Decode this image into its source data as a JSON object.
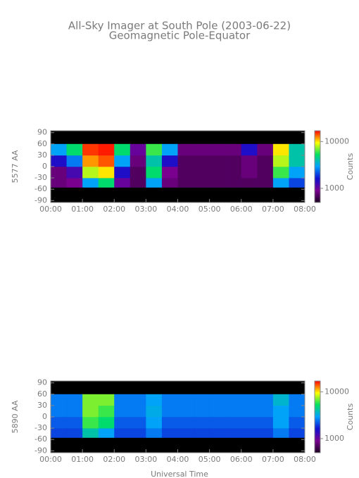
{
  "chart_data": [
    {
      "type": "heatmap",
      "title": "All-Sky Imager at South Pole (2003-06-22)",
      "subtitle": "Geomagnetic Pole-Equator",
      "y_label": "5577 AA",
      "colorbar_label": "Counts",
      "time_edges": [
        0,
        0.5,
        1,
        1.5,
        2,
        2.5,
        3,
        3.5,
        4,
        4.5,
        5,
        5.5,
        6,
        6.5,
        7,
        7.5,
        8
      ],
      "lat_edges": [
        -55,
        -30,
        0,
        30,
        60
      ],
      "values": [
        [
          800,
          900,
          3000,
          5000,
          1000,
          700,
          3000,
          800,
          700,
          700,
          700,
          700,
          700,
          700,
          3000,
          2000
        ],
        [
          800,
          1200,
          8000,
          10000,
          1500,
          700,
          5000,
          900,
          700,
          700,
          700,
          700,
          800,
          700,
          6000,
          3000
        ],
        [
          1500,
          2500,
          12000,
          14000,
          3000,
          800,
          4000,
          1500,
          700,
          700,
          700,
          700,
          800,
          700,
          8000,
          4000
        ],
        [
          3000,
          5000,
          15000,
          16000,
          5000,
          1000,
          6000,
          3000,
          800,
          800,
          800,
          800,
          1500,
          800,
          10000,
          4000
        ]
      ],
      "xlim": [
        0,
        8
      ],
      "xticks": [
        {
          "value": 0,
          "label": "00:00"
        },
        {
          "value": 1,
          "label": "01:00"
        },
        {
          "value": 2,
          "label": "02:00"
        },
        {
          "value": 3,
          "label": "03:00"
        },
        {
          "value": 4,
          "label": "04:00"
        },
        {
          "value": 5,
          "label": "05:00"
        },
        {
          "value": 6,
          "label": "06:00"
        },
        {
          "value": 7,
          "label": "07:00"
        },
        {
          "value": 8,
          "label": "08:00"
        }
      ],
      "ylim": [
        -95,
        95
      ],
      "yticks": [
        -90,
        -60,
        -30,
        0,
        30,
        60,
        90
      ],
      "clim": [
        500,
        17000
      ],
      "cticks": [
        1000,
        10000
      ],
      "log_color": true,
      "colormap": [
        "#1a0020",
        "#7a0090",
        "#1010d0",
        "#00a0ff",
        "#00e060",
        "#ffff00",
        "#ff0000"
      ]
    },
    {
      "type": "heatmap",
      "y_label": "5890 AA",
      "colorbar_label": "Counts",
      "x_label": "Universal Time",
      "time_edges": [
        0,
        0.5,
        1,
        1.5,
        2,
        2.5,
        3,
        3.5,
        4,
        4.5,
        5,
        5.5,
        6,
        6.5,
        7,
        7.5,
        8
      ],
      "lat_edges": [
        -55,
        -30,
        0,
        30,
        60
      ],
      "values": [
        [
          2000,
          2000,
          4000,
          3000,
          2000,
          2000,
          2500,
          2000,
          2000,
          2000,
          2000,
          2000,
          2000,
          2000,
          2500,
          2000
        ],
        [
          2200,
          2200,
          6000,
          5000,
          2200,
          2200,
          3000,
          2200,
          2200,
          2200,
          2200,
          2200,
          2200,
          2200,
          3000,
          2200
        ],
        [
          2500,
          2500,
          7000,
          6000,
          2500,
          2500,
          3200,
          2500,
          2500,
          2500,
          2500,
          2500,
          2500,
          2500,
          3000,
          2500
        ],
        [
          2500,
          2500,
          7000,
          7000,
          2500,
          2500,
          3000,
          2500,
          2500,
          2500,
          2500,
          2500,
          2500,
          2500,
          3500,
          2500
        ]
      ],
      "xlim": [
        0,
        8
      ],
      "xticks": [
        {
          "value": 0,
          "label": "00:00"
        },
        {
          "value": 1,
          "label": "01:00"
        },
        {
          "value": 2,
          "label": "02:00"
        },
        {
          "value": 3,
          "label": "03:00"
        },
        {
          "value": 4,
          "label": "04:00"
        },
        {
          "value": 5,
          "label": "05:00"
        },
        {
          "value": 6,
          "label": "06:00"
        },
        {
          "value": 7,
          "label": "07:00"
        },
        {
          "value": 8,
          "label": "08:00"
        }
      ],
      "ylim": [
        -95,
        95
      ],
      "yticks": [
        -90,
        -60,
        -30,
        0,
        30,
        60,
        90
      ],
      "clim": [
        500,
        17000
      ],
      "cticks": [
        1000,
        10000
      ],
      "log_color": true,
      "colormap": [
        "#1a0020",
        "#7a0090",
        "#1010d0",
        "#00a0ff",
        "#00e060",
        "#ffff00",
        "#ff0000"
      ]
    }
  ]
}
